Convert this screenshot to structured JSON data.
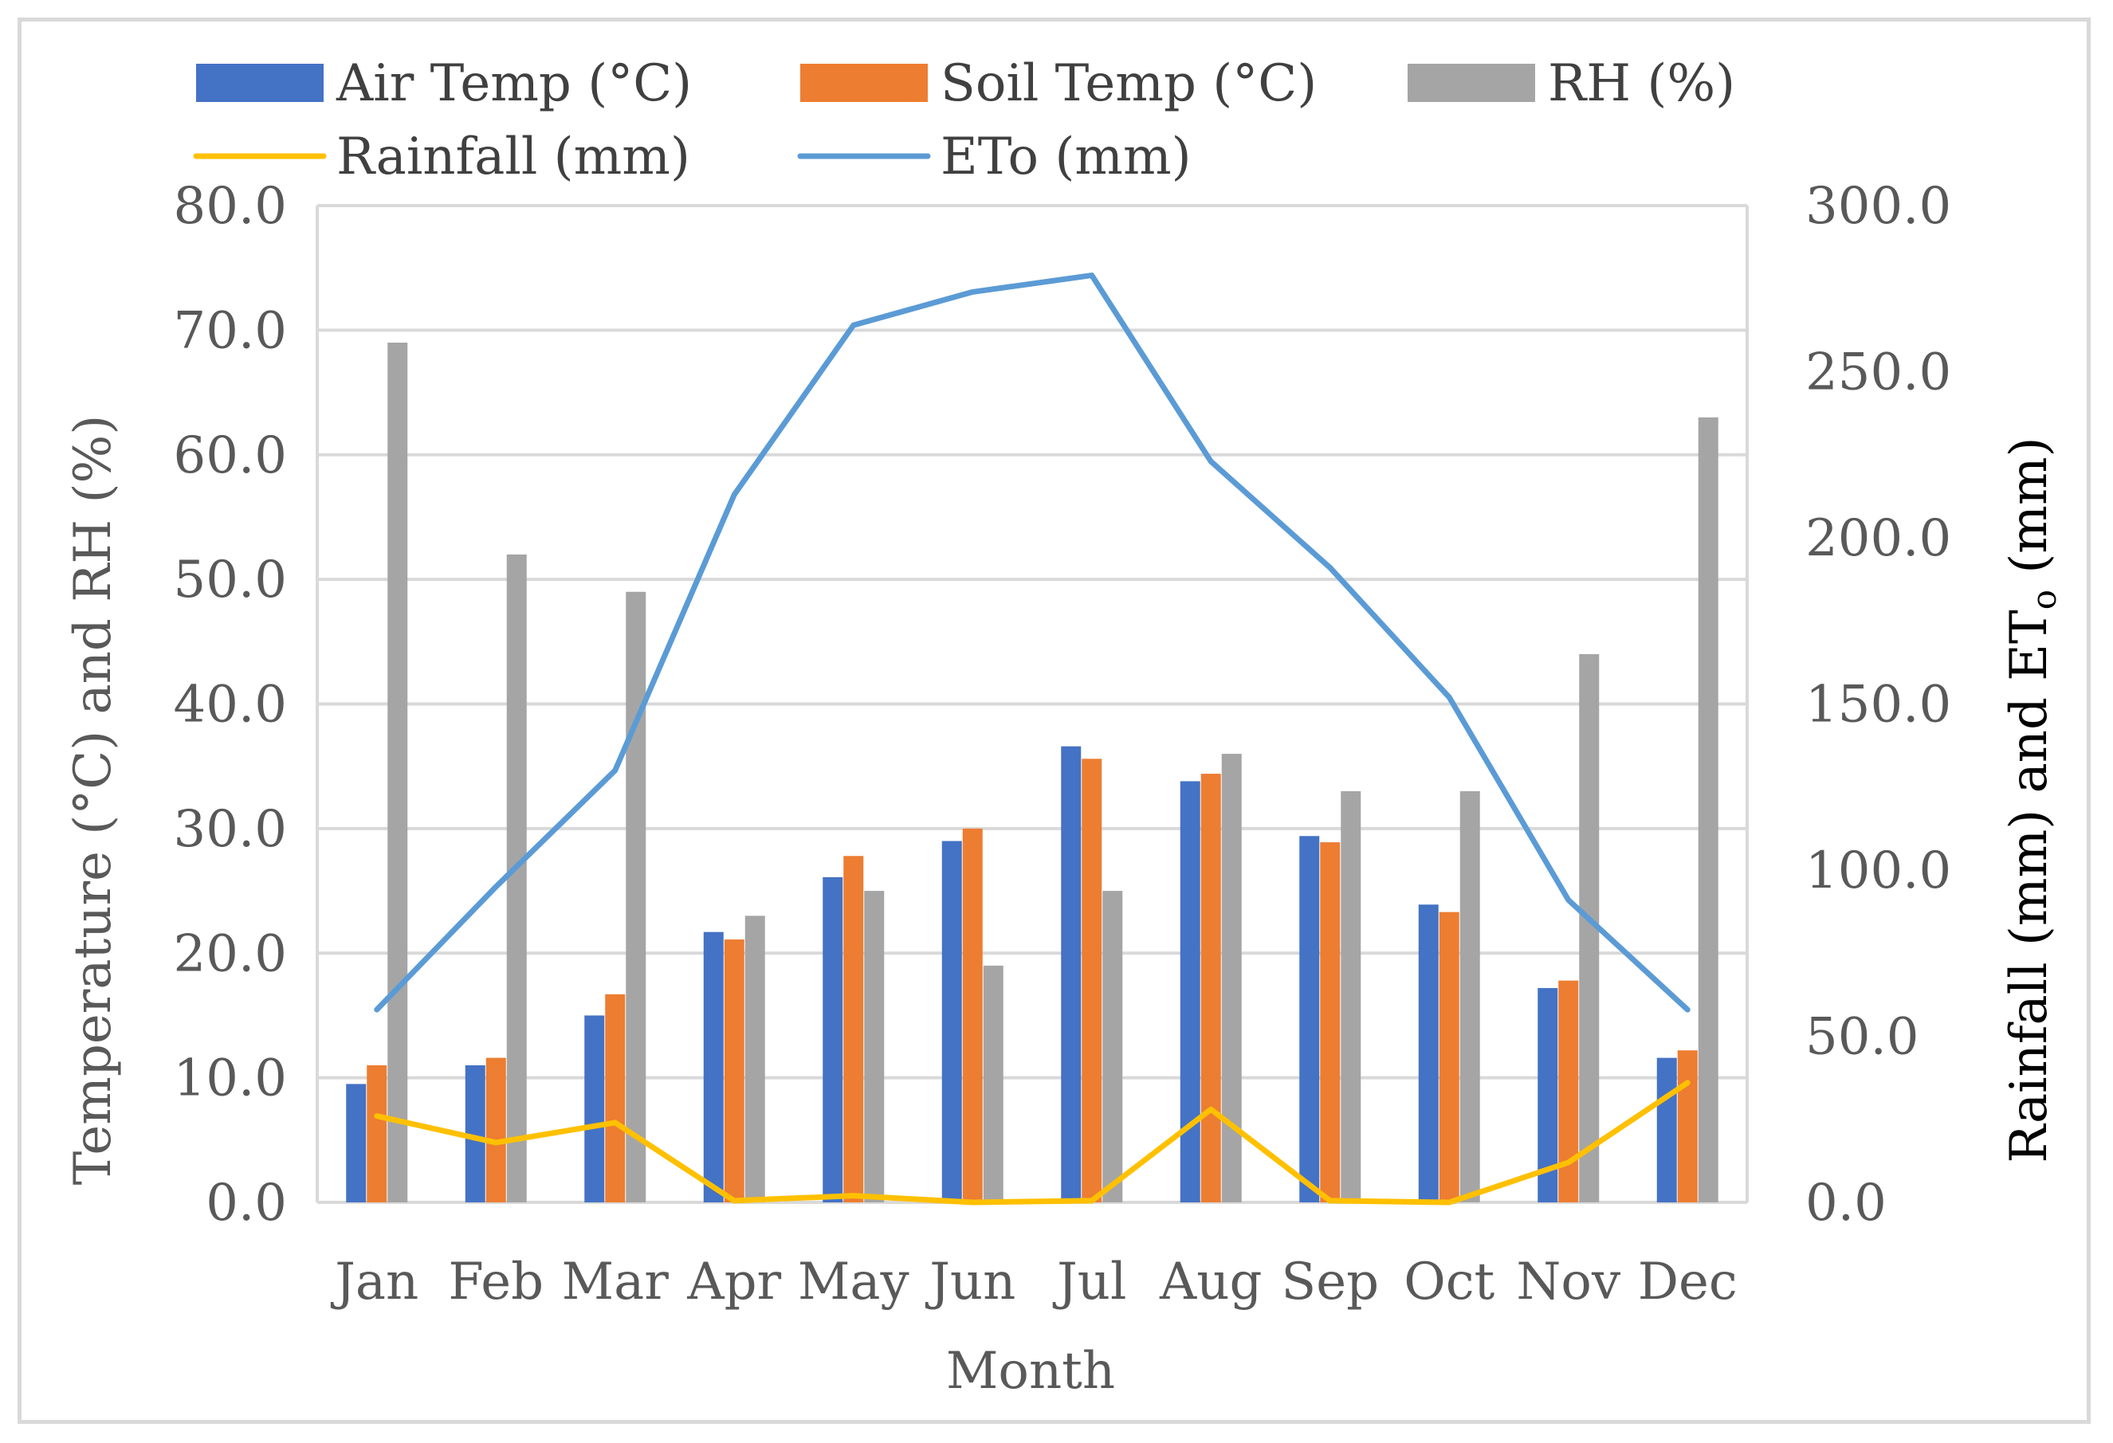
{
  "chart_data": {
    "type": "bar+line",
    "categories": [
      "Jan",
      "Feb",
      "Mar",
      "Apr",
      "May",
      "Jun",
      "Jul",
      "Aug",
      "Sep",
      "Oct",
      "Nov",
      "Dec"
    ],
    "xlabel": "Month",
    "ylabel_left": "Temperature (°C) and RH (%)",
    "ylabel_right_main": "Rainfall (mm) and ET",
    "ylabel_right_sub": "o",
    "ylabel_right_tail": " (mm)",
    "ylim_left": [
      0,
      80
    ],
    "ylim_right": [
      0,
      300
    ],
    "yticks_left": [
      "0.0",
      "10.0",
      "20.0",
      "30.0",
      "40.0",
      "50.0",
      "60.0",
      "70.0",
      "80.0"
    ],
    "yticks_right": [
      "0.0",
      "50.0",
      "100.0",
      "150.0",
      "200.0",
      "250.0",
      "300.0"
    ],
    "grid": true,
    "legend_position": "top",
    "bar_series": [
      {
        "name": "Air Temp (°C)",
        "color": "#4472c4",
        "axis": "left",
        "values": [
          9.5,
          11.0,
          15.0,
          21.7,
          26.1,
          29.0,
          36.6,
          33.8,
          29.4,
          23.9,
          17.2,
          11.6
        ]
      },
      {
        "name": "Soil Temp (°C)",
        "color": "#ed7d31",
        "axis": "left",
        "values": [
          11.0,
          11.6,
          16.7,
          21.1,
          27.8,
          30.0,
          35.6,
          34.4,
          28.9,
          23.3,
          17.8,
          12.2
        ]
      },
      {
        "name": "RH (%)",
        "color": "#a5a5a5",
        "axis": "left",
        "values": [
          69,
          52,
          49,
          23,
          25,
          19,
          25,
          36,
          33,
          33,
          44,
          63
        ]
      }
    ],
    "line_series": [
      {
        "name": "Rainfall (mm)",
        "color": "#ffc000",
        "axis": "right",
        "values": [
          26,
          18,
          24,
          0.5,
          2,
          0,
          0.5,
          28,
          0.5,
          0,
          12,
          36
        ]
      },
      {
        "name": "ETo (mm)",
        "color": "#5b9bd5",
        "axis": "right",
        "values": [
          58,
          95,
          130,
          213,
          264,
          274,
          279,
          223,
          191,
          152,
          91,
          58
        ]
      }
    ]
  }
}
